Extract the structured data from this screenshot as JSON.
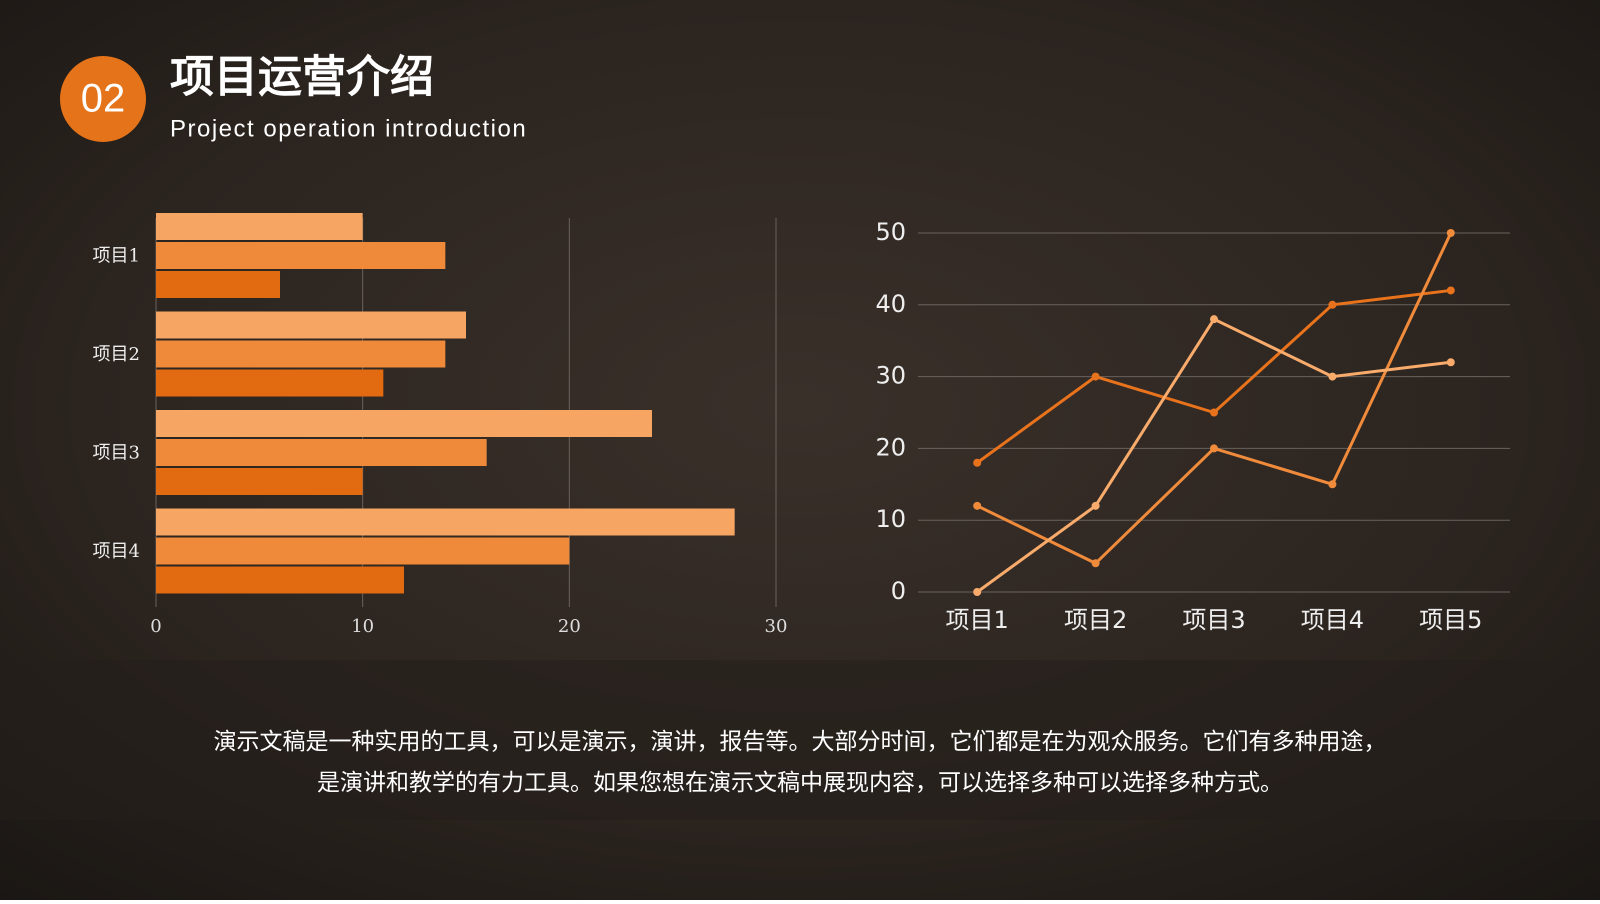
{
  "header": {
    "number": "02",
    "title": "项目运营介绍",
    "subtitle": "Project operation introduction"
  },
  "chart_data": [
    {
      "type": "bar",
      "orientation": "horizontal",
      "categories": [
        "项目1",
        "项目2",
        "项目3",
        "项目4"
      ],
      "series": [
        {
          "color": "#f7a562",
          "values": [
            10,
            15,
            24,
            28
          ]
        },
        {
          "color": "#ef8a3a",
          "values": [
            14,
            14,
            16,
            20
          ]
        },
        {
          "color": "#e26b12",
          "values": [
            6,
            11,
            10,
            12
          ]
        }
      ],
      "xlim": [
        0,
        30
      ],
      "xticks": [
        0,
        10,
        20,
        30
      ],
      "grid": true
    },
    {
      "type": "line",
      "categories": [
        "项目1",
        "项目2",
        "项目3",
        "项目4",
        "项目5"
      ],
      "series": [
        {
          "color": "#e8731c",
          "values": [
            18,
            30,
            25,
            40,
            42
          ]
        },
        {
          "color": "#f08b3c",
          "values": [
            12,
            4,
            20,
            15,
            50
          ]
        },
        {
          "color": "#f9ab6c",
          "values": [
            0,
            12,
            38,
            30,
            32
          ]
        }
      ],
      "ylim": [
        0,
        50
      ],
      "yticks": [
        0,
        10,
        20,
        30,
        40,
        50
      ],
      "grid": true
    }
  ],
  "body": [
    "演示文稿是一种实用的工具，可以是演示，演讲，报告等。大部分时间，它们都是在为观众服务。它们有多种用途，",
    "是演讲和教学的有力工具。如果您想在演示文稿中展现内容，可以选择多种可以选择多种方式。"
  ]
}
